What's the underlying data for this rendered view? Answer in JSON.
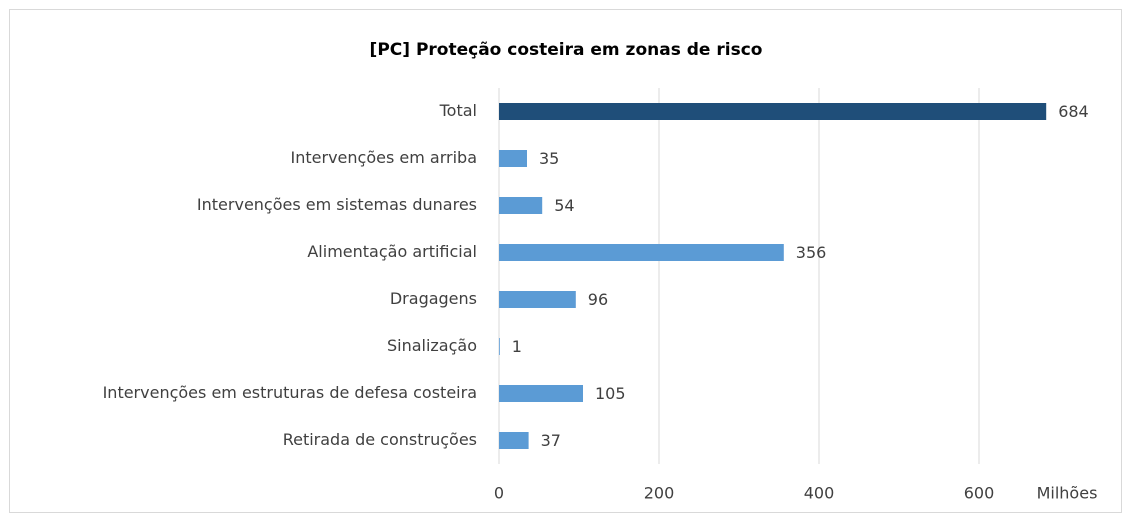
{
  "chart_data": {
    "type": "barh",
    "title": "[PC] Proteção costeira em zonas de risco",
    "categories": [
      "Total",
      "Intervenções em arriba",
      "Intervenções em sistemas dunares",
      "Alimentação artificial",
      "Dragagens",
      "Sinalização",
      "Intervenções em estruturas de defesa costeira",
      "Retirada de construções"
    ],
    "values": [
      684,
      35,
      54,
      356,
      96,
      1,
      105,
      37
    ],
    "colors": [
      "#1f4e79",
      "#5b9bd5",
      "#5b9bd5",
      "#5b9bd5",
      "#5b9bd5",
      "#5b9bd5",
      "#5b9bd5",
      "#5b9bd5"
    ],
    "xlim": [
      0,
      750
    ],
    "xticks": [
      0,
      200,
      400,
      600
    ],
    "xlabel": "Milhões",
    "grid": true
  }
}
